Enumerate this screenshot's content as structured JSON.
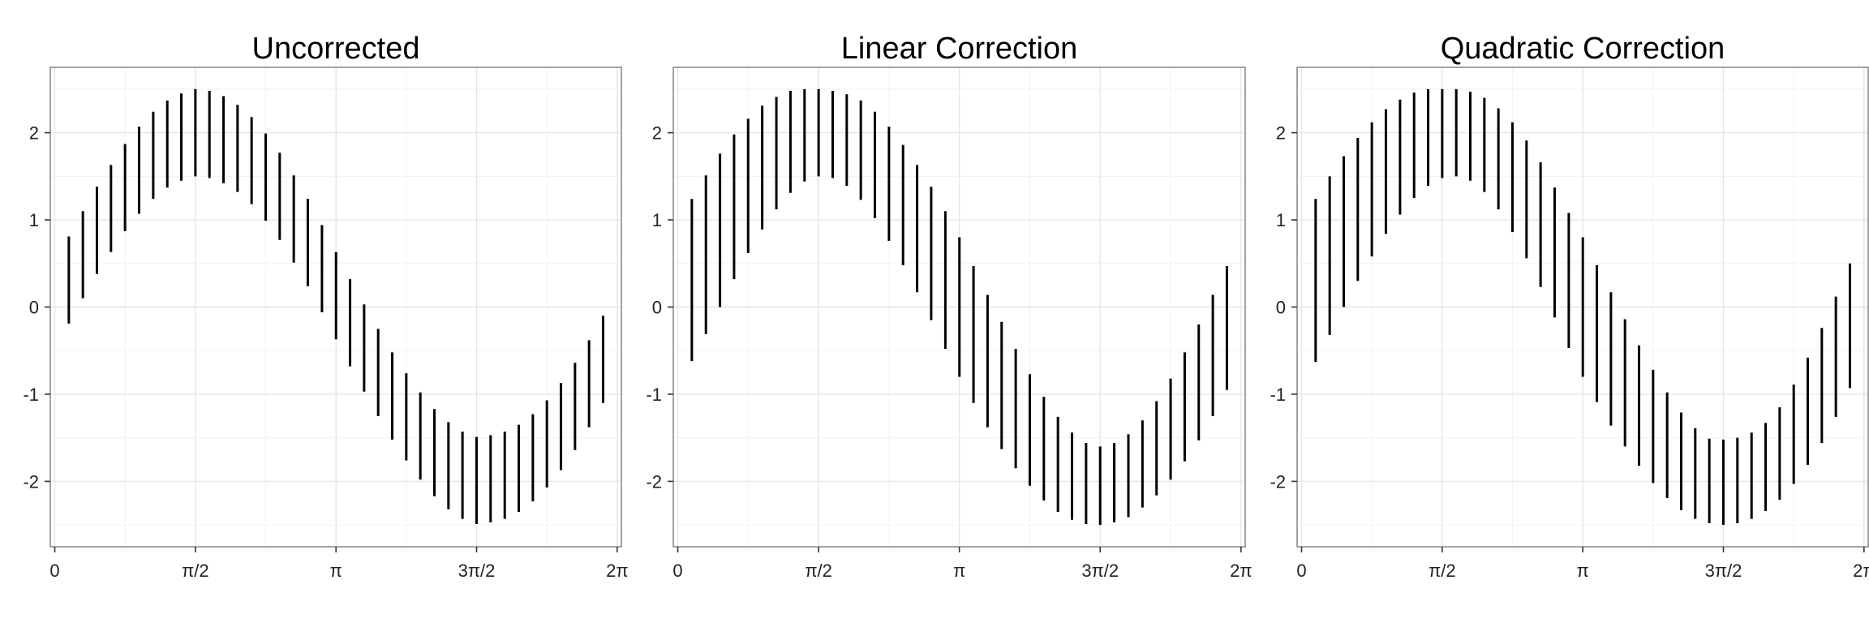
{
  "chart_data": [
    {
      "type": "errorbar",
      "title": "Uncorrected",
      "xlabel": "",
      "ylabel": "",
      "xlim": [
        -0.05,
        6.33
      ],
      "ylim": [
        -2.75,
        2.75
      ],
      "x_ticks": [
        0,
        1.5708,
        3.1416,
        4.7124,
        6.2832
      ],
      "x_tick_labels": [
        "0",
        "π/2",
        "π",
        "3π/2",
        "2π"
      ],
      "y_ticks": [
        -2,
        -1,
        0,
        1,
        2
      ],
      "y_tick_labels": [
        "-2",
        "-1",
        "0",
        "1",
        "2"
      ],
      "grid": true,
      "x": [
        0.157,
        0.314,
        0.471,
        0.628,
        0.785,
        0.942,
        1.1,
        1.257,
        1.414,
        1.571,
        1.728,
        1.885,
        2.042,
        2.199,
        2.356,
        2.513,
        2.67,
        2.827,
        2.985,
        3.142,
        3.299,
        3.456,
        3.613,
        3.77,
        3.927,
        4.084,
        4.241,
        4.398,
        4.555,
        4.712,
        4.869,
        5.027,
        5.184,
        5.341,
        5.498,
        5.655,
        5.812,
        5.969,
        6.126
      ],
      "ymin": [
        -0.19,
        0.1,
        0.38,
        0.63,
        0.87,
        1.07,
        1.24,
        1.37,
        1.45,
        1.5,
        1.48,
        1.42,
        1.32,
        1.18,
        0.99,
        0.77,
        0.51,
        0.24,
        -0.06,
        -0.37,
        -0.68,
        -0.97,
        -1.25,
        -1.52,
        -1.76,
        -1.98,
        -2.17,
        -2.32,
        -2.43,
        -2.49,
        -2.47,
        -2.43,
        -2.35,
        -2.23,
        -2.07,
        -1.87,
        -1.64,
        -1.38,
        -1.1
      ],
      "ymax": [
        0.81,
        1.1,
        1.38,
        1.63,
        1.87,
        2.07,
        2.24,
        2.37,
        2.45,
        2.5,
        2.48,
        2.42,
        2.32,
        2.18,
        1.99,
        1.77,
        1.51,
        1.24,
        0.94,
        0.63,
        0.32,
        0.03,
        -0.25,
        -0.52,
        -0.76,
        -0.98,
        -1.17,
        -1.32,
        -1.43,
        -1.49,
        -1.47,
        -1.43,
        -1.35,
        -1.23,
        -1.07,
        -0.87,
        -0.64,
        -0.38,
        -0.1
      ]
    },
    {
      "type": "errorbar",
      "title": "Linear Correction",
      "xlabel": "",
      "ylabel": "",
      "xlim": [
        -0.05,
        6.33
      ],
      "ylim": [
        -2.75,
        2.75
      ],
      "x_ticks": [
        0,
        1.5708,
        3.1416,
        4.7124,
        6.2832
      ],
      "x_tick_labels": [
        "0",
        "π/2",
        "π",
        "3π/2",
        "2π"
      ],
      "y_ticks": [
        -2,
        -1,
        0,
        1,
        2
      ],
      "y_tick_labels": [
        "-2",
        "-1",
        "0",
        "1",
        "2"
      ],
      "grid": true,
      "x": [
        0.157,
        0.314,
        0.471,
        0.628,
        0.785,
        0.942,
        1.1,
        1.257,
        1.414,
        1.571,
        1.728,
        1.885,
        2.042,
        2.199,
        2.356,
        2.513,
        2.67,
        2.827,
        2.985,
        3.142,
        3.299,
        3.456,
        3.613,
        3.77,
        3.927,
        4.084,
        4.241,
        4.398,
        4.555,
        4.712,
        4.869,
        5.027,
        5.184,
        5.341,
        5.498,
        5.655,
        5.812,
        5.969,
        6.126
      ],
      "ymin": [
        -0.62,
        -0.31,
        0.0,
        0.32,
        0.62,
        0.89,
        1.12,
        1.31,
        1.44,
        1.5,
        1.48,
        1.39,
        1.23,
        1.02,
        0.76,
        0.48,
        0.17,
        -0.15,
        -0.48,
        -0.8,
        -1.1,
        -1.38,
        -1.63,
        -1.85,
        -2.05,
        -2.22,
        -2.35,
        -2.44,
        -2.49,
        -2.5,
        -2.47,
        -2.41,
        -2.3,
        -2.16,
        -1.98,
        -1.77,
        -1.53,
        -1.25,
        -0.95
      ],
      "ymax": [
        1.24,
        1.51,
        1.76,
        1.98,
        2.16,
        2.31,
        2.41,
        2.48,
        2.5,
        2.5,
        2.48,
        2.44,
        2.37,
        2.24,
        2.07,
        1.86,
        1.63,
        1.38,
        1.1,
        0.8,
        0.47,
        0.14,
        -0.17,
        -0.48,
        -0.77,
        -1.03,
        -1.26,
        -1.44,
        -1.56,
        -1.6,
        -1.56,
        -1.46,
        -1.3,
        -1.08,
        -0.82,
        -0.52,
        -0.2,
        0.14,
        0.47
      ]
    },
    {
      "type": "errorbar",
      "title": "Quadratic Correction",
      "xlabel": "",
      "ylabel": "",
      "xlim": [
        -0.05,
        6.33
      ],
      "ylim": [
        -2.75,
        2.75
      ],
      "x_ticks": [
        0,
        1.5708,
        3.1416,
        4.7124,
        6.2832
      ],
      "x_tick_labels": [
        "0",
        "π/2",
        "π",
        "3π/2",
        "2π"
      ],
      "y_ticks": [
        -2,
        -1,
        0,
        1,
        2
      ],
      "y_tick_labels": [
        "-2",
        "-1",
        "0",
        "1",
        "2"
      ],
      "grid": true,
      "x": [
        0.157,
        0.314,
        0.471,
        0.628,
        0.785,
        0.942,
        1.1,
        1.257,
        1.414,
        1.571,
        1.728,
        1.885,
        2.042,
        2.199,
        2.356,
        2.513,
        2.67,
        2.827,
        2.985,
        3.142,
        3.299,
        3.456,
        3.613,
        3.77,
        3.927,
        4.084,
        4.241,
        4.398,
        4.555,
        4.712,
        4.869,
        5.027,
        5.184,
        5.341,
        5.498,
        5.655,
        5.812,
        5.969,
        6.126
      ],
      "ymin": [
        -0.63,
        -0.32,
        0.0,
        0.3,
        0.58,
        0.84,
        1.06,
        1.25,
        1.39,
        1.48,
        1.5,
        1.45,
        1.32,
        1.12,
        0.86,
        0.56,
        0.23,
        -0.12,
        -0.47,
        -0.8,
        -1.09,
        -1.36,
        -1.6,
        -1.82,
        -2.02,
        -2.19,
        -2.33,
        -2.43,
        -2.48,
        -2.5,
        -2.48,
        -2.43,
        -2.34,
        -2.21,
        -2.03,
        -1.81,
        -1.56,
        -1.26,
        -0.93
      ],
      "ymax": [
        1.24,
        1.5,
        1.73,
        1.94,
        2.12,
        2.27,
        2.38,
        2.46,
        2.5,
        2.5,
        2.5,
        2.47,
        2.4,
        2.28,
        2.12,
        1.91,
        1.66,
        1.37,
        1.08,
        0.8,
        0.48,
        0.17,
        -0.14,
        -0.44,
        -0.72,
        -0.98,
        -1.21,
        -1.39,
        -1.51,
        -1.52,
        -1.5,
        -1.44,
        -1.33,
        -1.15,
        -0.89,
        -0.58,
        -0.24,
        0.12,
        0.5
      ]
    }
  ]
}
